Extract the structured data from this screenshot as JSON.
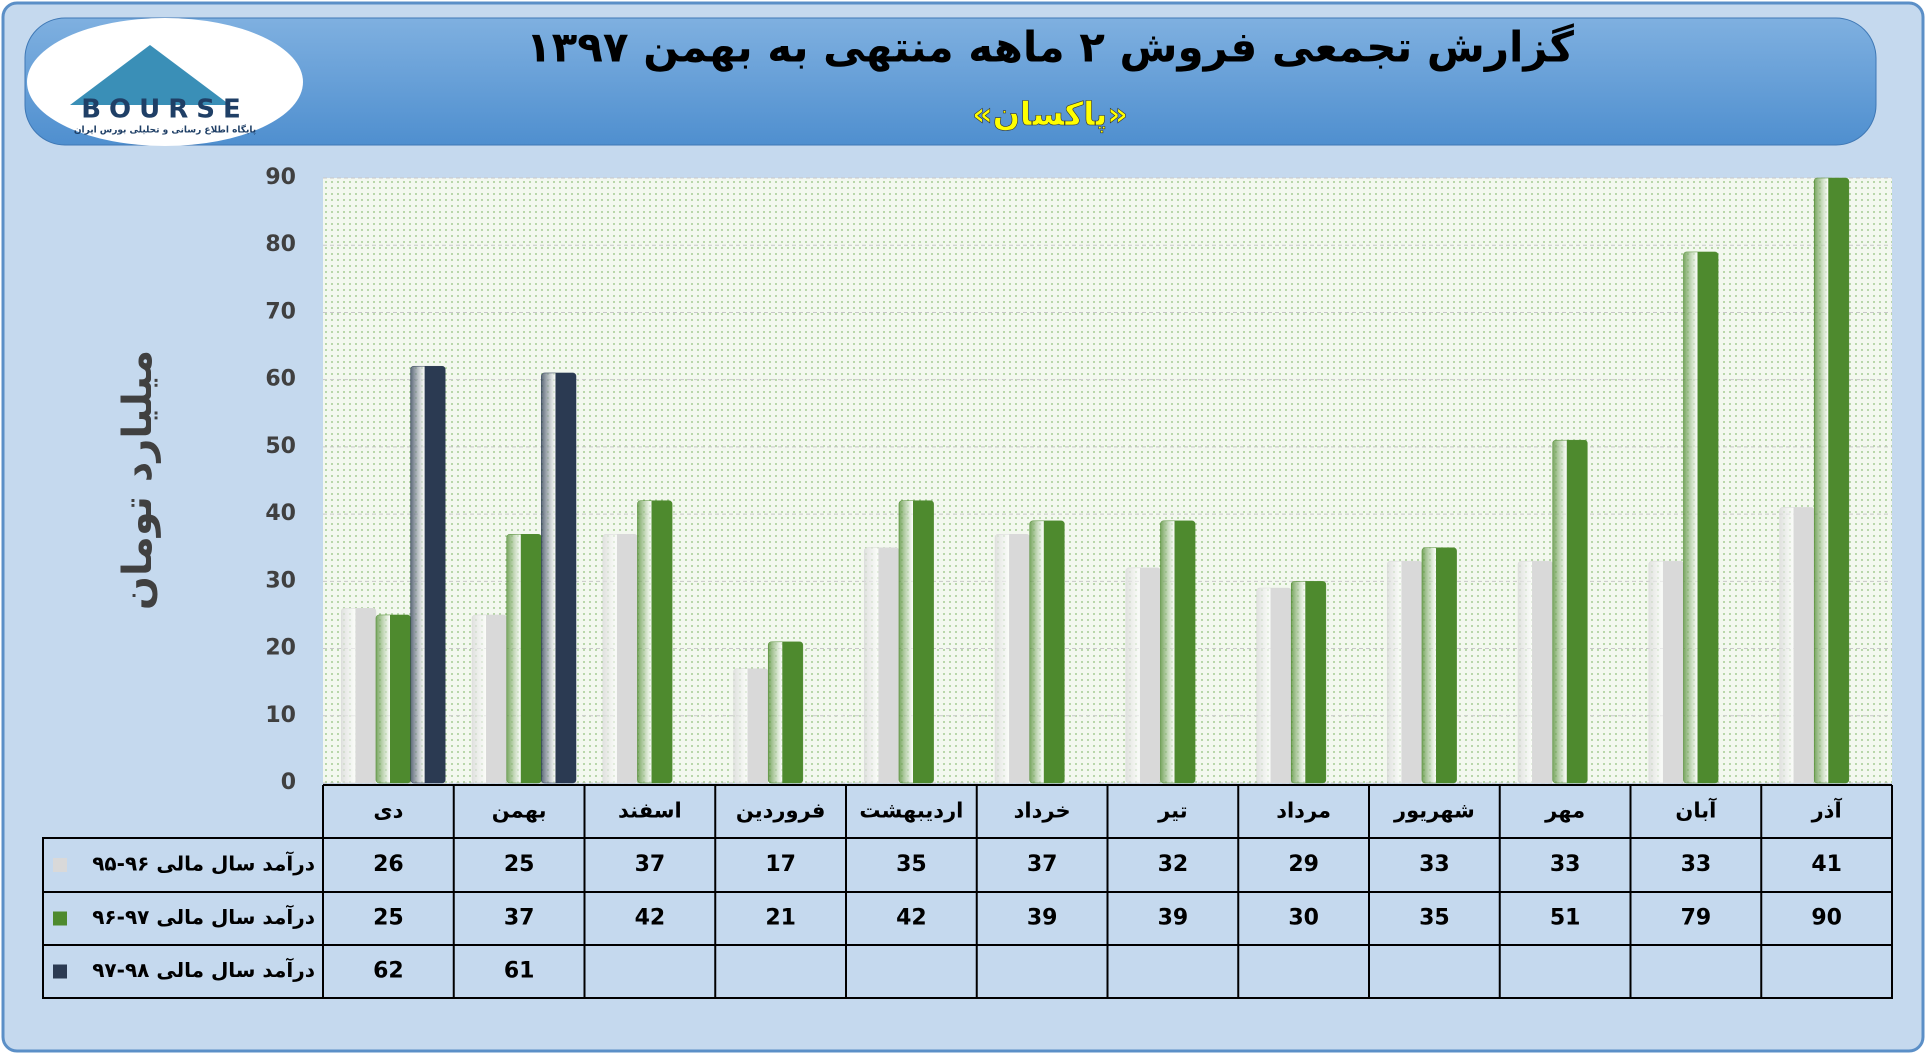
{
  "logo": {
    "name": "BOURSE",
    "tagline": "پایگاه اطلاع رسانی و تحلیلی بورس ایران"
  },
  "chart_data": {
    "type": "bar",
    "title": "گزارش تجمعی فروش ۲ ماهه منتهی به بهمن ۱۳۹۷",
    "subtitle": "«پاکسان»",
    "y_label": "میلیارد تومان",
    "categories": [
      "دی",
      "بهمن",
      "اسفند",
      "فروردین",
      "اردیبهشت",
      "خرداد",
      "تیر",
      "مرداد",
      "شهریور",
      "مهر",
      "آبان",
      "آذر"
    ],
    "series": [
      {
        "name": "درآمد سال مالی ۹۶-۹۵",
        "color": "#d9d9d9",
        "values": [
          26,
          25,
          37,
          17,
          35,
          37,
          32,
          29,
          33,
          33,
          33,
          41
        ]
      },
      {
        "name": "درآمد سال مالی ۹۷-۹۶",
        "color": "#4e8a2e",
        "values": [
          25,
          37,
          42,
          21,
          42,
          39,
          39,
          30,
          35,
          51,
          79,
          90
        ]
      },
      {
        "name": "درآمد سال مالی ۹۸-۹۷",
        "color": "#2b3a52",
        "values": [
          62,
          61,
          null,
          null,
          null,
          null,
          null,
          null,
          null,
          null,
          null,
          null
        ]
      }
    ],
    "ylim": [
      0,
      90
    ],
    "yticks": [
      0,
      10,
      20,
      30,
      40,
      50,
      60,
      70,
      80,
      90
    ],
    "grid": true
  }
}
